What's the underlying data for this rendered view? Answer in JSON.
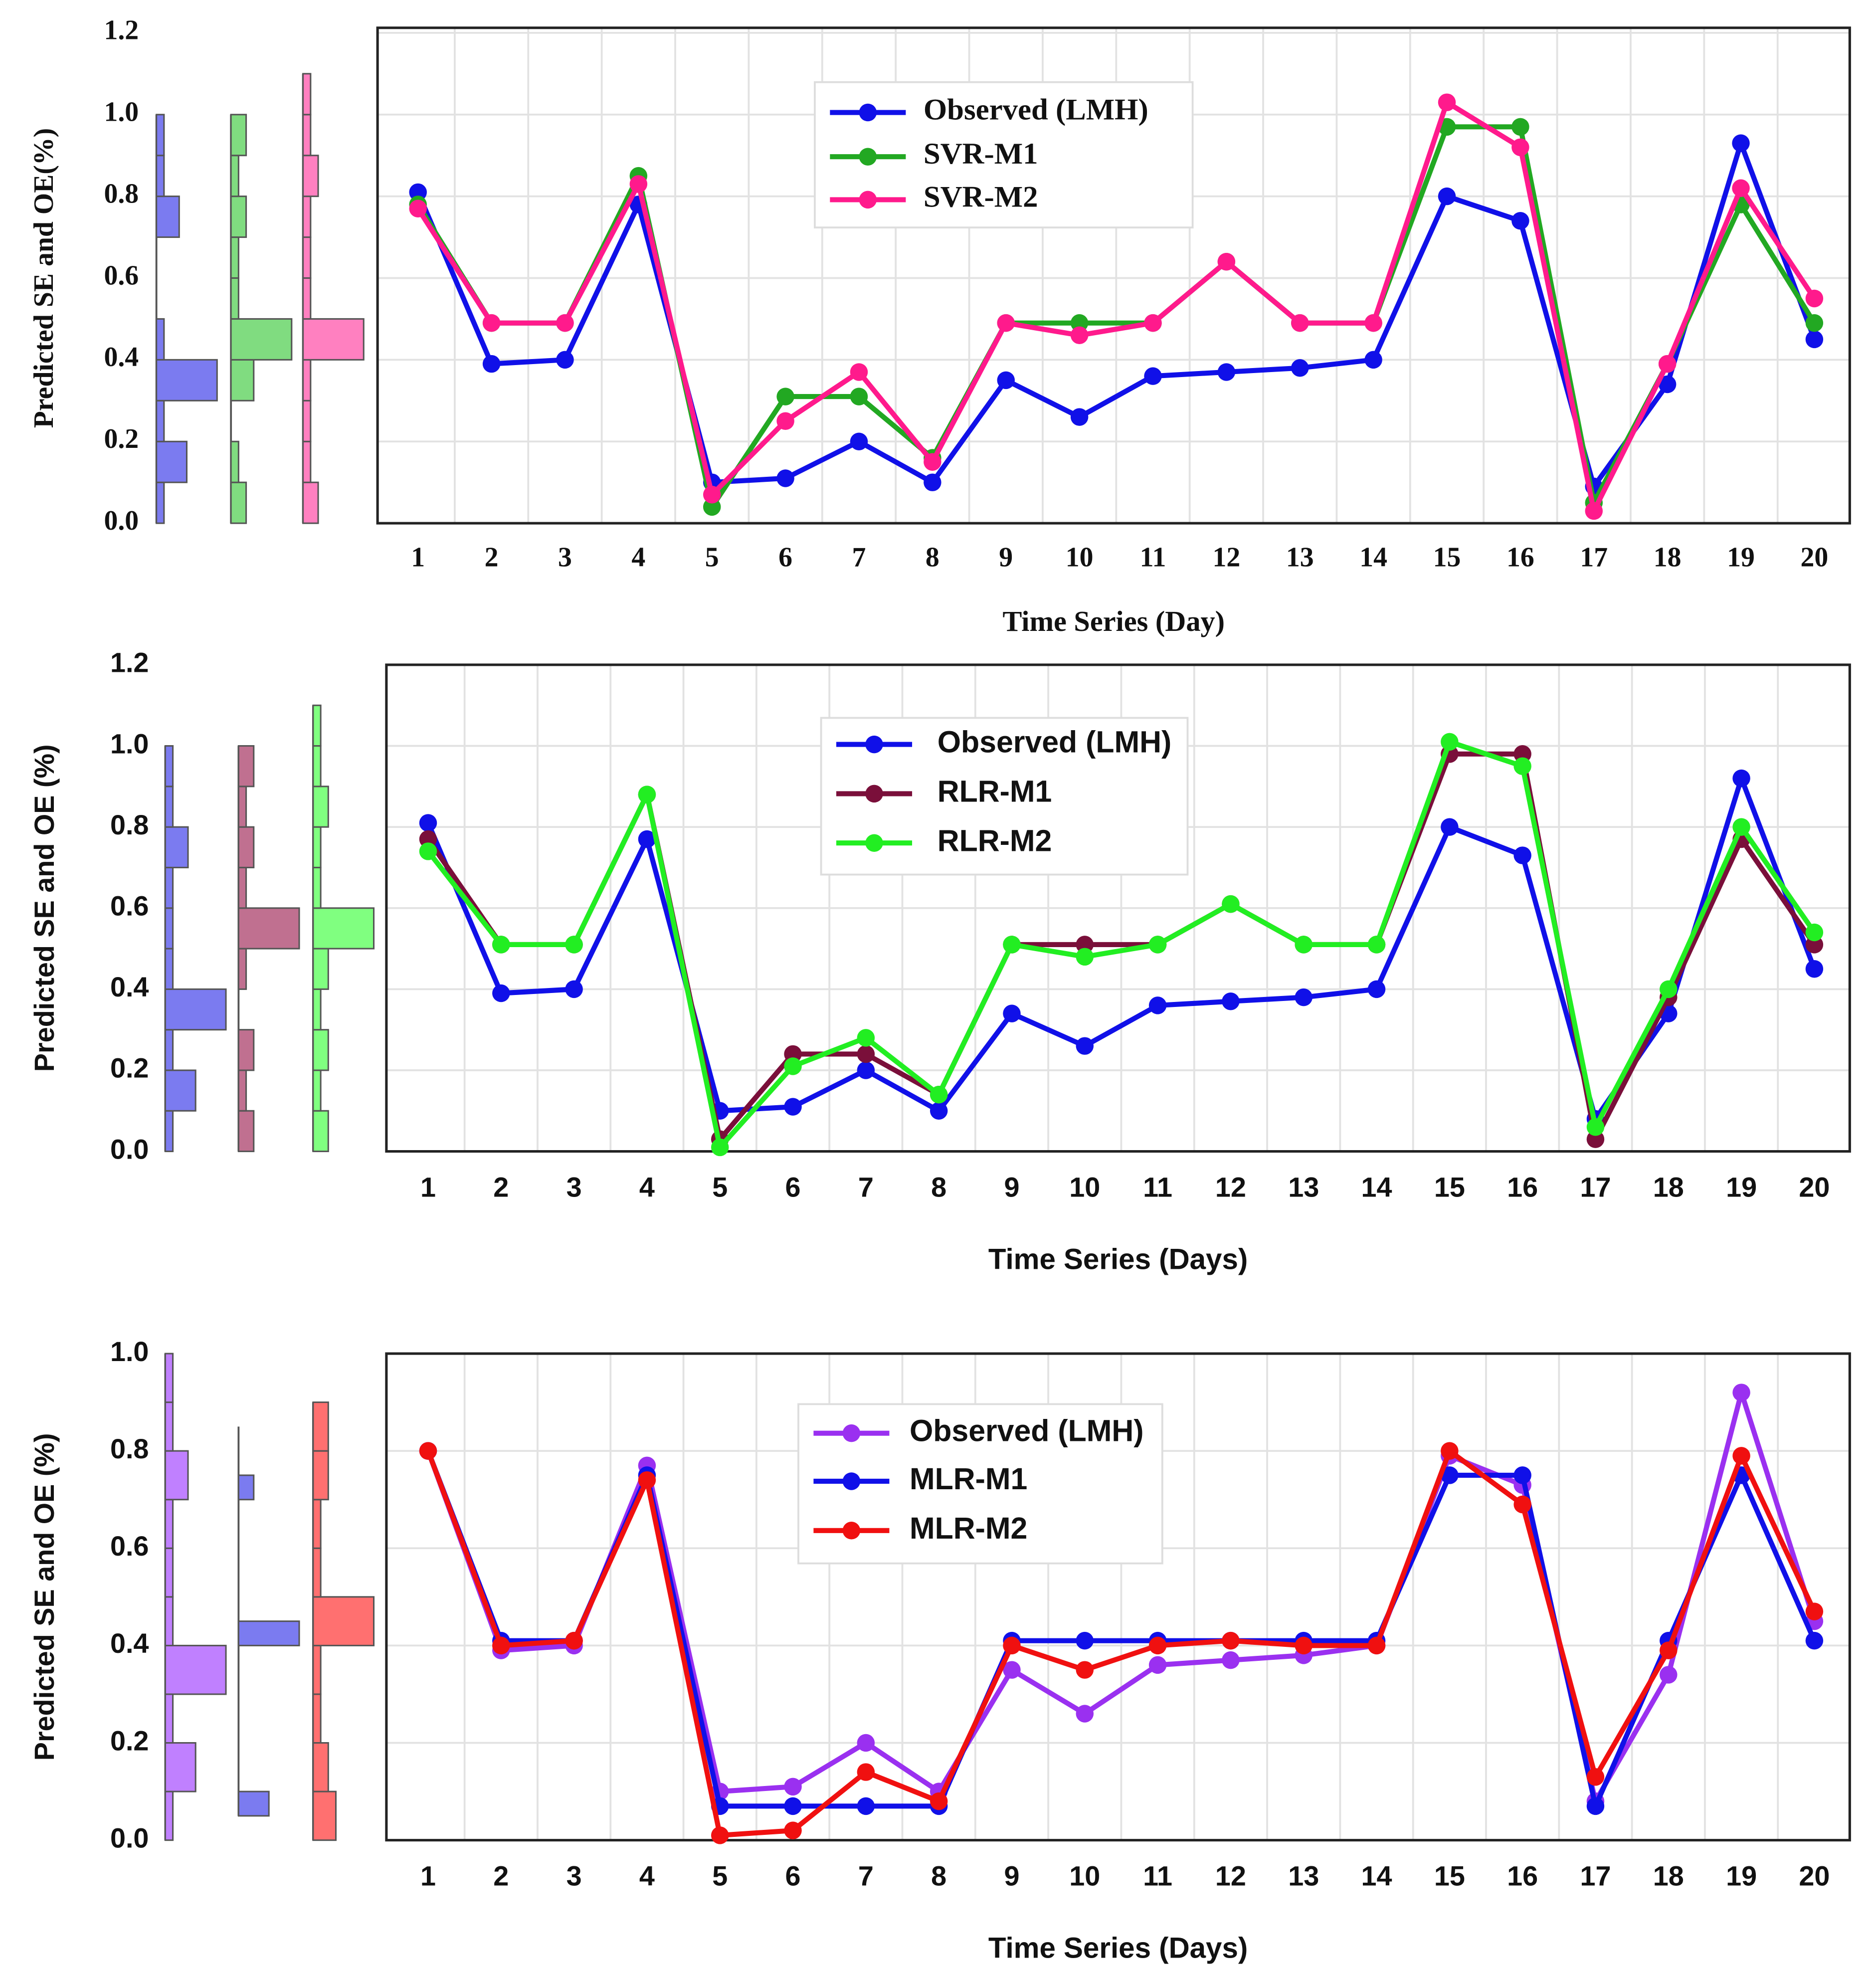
{
  "chart_data": [
    {
      "type": "line",
      "x_label": "Time Series (Day)",
      "y_label": "Predicted SE and OE(%)",
      "categories": [
        "1",
        "2",
        "3",
        "4",
        "5",
        "6",
        "7",
        "8",
        "9",
        "10",
        "11",
        "12",
        "13",
        "14",
        "15",
        "16",
        "17",
        "18",
        "19",
        "20"
      ],
      "ylim": [
        0,
        1.2
      ],
      "yticks": [
        {
          "value": 0,
          "label": "0.0"
        },
        0.2,
        0.4,
        0.6,
        0.8,
        {
          "value": 1,
          "label": "1.0"
        },
        1.2
      ],
      "grid": true,
      "series": [
        {
          "name": "Observed (LMH)",
          "color": "#1010e8",
          "values": [
            0.81,
            0.39,
            0.4,
            0.78,
            0.1,
            0.11,
            0.2,
            0.1,
            0.35,
            0.26,
            0.36,
            0.37,
            0.38,
            0.4,
            0.8,
            0.74,
            0.09,
            0.34,
            0.93,
            0.45
          ]
        },
        {
          "name": "SVR-M1",
          "color": "#22a822",
          "values": [
            0.78,
            0.49,
            0.49,
            0.85,
            0.04,
            0.31,
            0.31,
            0.16,
            0.49,
            0.49,
            0.49,
            0.64,
            0.49,
            0.49,
            0.97,
            0.97,
            0.05,
            0.39,
            0.78,
            0.49
          ]
        },
        {
          "name": "SVR-M2",
          "color": "#ff1a8c",
          "values": [
            0.77,
            0.49,
            0.49,
            0.83,
            0.07,
            0.25,
            0.37,
            0.15,
            0.49,
            0.46,
            0.49,
            0.64,
            0.49,
            0.49,
            1.03,
            0.92,
            0.03,
            0.39,
            0.82,
            0.55
          ]
        }
      ],
      "histograms": [
        {
          "color": "#7b7bf0",
          "bins": [
            0,
            0.1,
            0.2,
            0.3,
            0.4,
            0.5,
            0.6,
            0.7,
            0.8,
            0.9,
            1.0
          ],
          "counts": [
            1,
            4,
            1,
            8,
            1,
            0,
            0,
            3,
            1,
            1
          ]
        },
        {
          "color": "#80dc80",
          "bins": [
            0,
            0.1,
            0.2,
            0.3,
            0.4,
            0.5,
            0.6,
            0.7,
            0.8,
            0.9,
            1.0
          ],
          "counts": [
            2,
            1,
            0,
            3,
            8,
            1,
            1,
            2,
            1,
            2
          ]
        },
        {
          "color": "#ff80c0",
          "bins": [
            0,
            0.1,
            0.2,
            0.3,
            0.4,
            0.5,
            0.6,
            0.7,
            0.8,
            0.9,
            1.0,
            1.1
          ],
          "counts": [
            2,
            1,
            1,
            1,
            8,
            1,
            1,
            1,
            2,
            1,
            1
          ]
        }
      ]
    },
    {
      "type": "line",
      "x_label": "Time Series (Days)",
      "y_label": "Predicted SE and OE (%)",
      "categories": [
        "1",
        "2",
        "3",
        "4",
        "5",
        "6",
        "7",
        "8",
        "9",
        "10",
        "11",
        "12",
        "13",
        "14",
        "15",
        "16",
        "17",
        "18",
        "19",
        "20"
      ],
      "ylim": [
        0,
        1.2
      ],
      "yticks": [
        {
          "value": 0,
          "label": "0.0"
        },
        0.2,
        0.4,
        0.6,
        0.8,
        {
          "value": 1,
          "label": "1.0"
        },
        1.2
      ],
      "grid": true,
      "series": [
        {
          "name": "Observed (LMH)",
          "color": "#1010e8",
          "values": [
            0.81,
            0.39,
            0.4,
            0.77,
            0.1,
            0.11,
            0.2,
            0.1,
            0.34,
            0.26,
            0.36,
            0.37,
            0.38,
            0.4,
            0.8,
            0.73,
            0.08,
            0.34,
            0.92,
            0.45
          ]
        },
        {
          "name": "RLR-M1",
          "color": "#7a0f3a",
          "values": [
            0.77,
            0.51,
            0.51,
            0.88,
            0.03,
            0.24,
            0.24,
            0.14,
            0.51,
            0.51,
            0.51,
            0.61,
            0.51,
            0.51,
            0.98,
            0.98,
            0.03,
            0.38,
            0.77,
            0.51
          ]
        },
        {
          "name": "RLR-M2",
          "color": "#22ee22",
          "values": [
            0.74,
            0.51,
            0.51,
            0.88,
            0.01,
            0.21,
            0.28,
            0.14,
            0.51,
            0.48,
            0.51,
            0.61,
            0.51,
            0.51,
            1.01,
            0.95,
            0.06,
            0.4,
            0.8,
            0.54
          ]
        }
      ],
      "histograms": [
        {
          "color": "#7b7bf0",
          "bins": [
            0,
            0.1,
            0.2,
            0.3,
            0.4,
            0.5,
            0.6,
            0.7,
            0.8,
            0.9,
            1.0
          ],
          "counts": [
            1,
            4,
            1,
            8,
            1,
            1,
            1,
            3,
            1,
            1
          ]
        },
        {
          "color": "#c07090",
          "bins": [
            0,
            0.1,
            0.2,
            0.3,
            0.4,
            0.5,
            0.6,
            0.7,
            0.8,
            0.9,
            1.0
          ],
          "counts": [
            2,
            1,
            2,
            0,
            1,
            8,
            1,
            2,
            1,
            2
          ]
        },
        {
          "color": "#80ff80",
          "bins": [
            0,
            0.1,
            0.2,
            0.3,
            0.4,
            0.5,
            0.6,
            0.7,
            0.8,
            0.9,
            1.0,
            1.1
          ],
          "counts": [
            2,
            1,
            2,
            1,
            2,
            8,
            1,
            1,
            2,
            1,
            1
          ]
        }
      ]
    },
    {
      "type": "line",
      "x_label": "Time Series (Days)",
      "y_label": "Predicted SE and OE (%)",
      "categories": [
        "1",
        "2",
        "3",
        "4",
        "5",
        "6",
        "7",
        "8",
        "9",
        "10",
        "11",
        "12",
        "13",
        "14",
        "15",
        "16",
        "17",
        "18",
        "19",
        "20"
      ],
      "ylim": [
        0,
        1.0
      ],
      "yticks": [
        {
          "value": 0,
          "label": "0.0"
        },
        0.2,
        0.4,
        0.6,
        0.8,
        {
          "value": 1,
          "label": "1.0"
        }
      ],
      "grid": true,
      "series": [
        {
          "name": "Observed (LMH)",
          "color": "#9a30f0",
          "values": [
            0.8,
            0.39,
            0.4,
            0.77,
            0.1,
            0.11,
            0.2,
            0.1,
            0.35,
            0.26,
            0.36,
            0.37,
            0.38,
            0.4,
            0.79,
            0.73,
            0.08,
            0.34,
            0.92,
            0.45
          ]
        },
        {
          "name": "MLR-M1",
          "color": "#1010e8",
          "values": [
            0.8,
            0.41,
            0.41,
            0.75,
            0.07,
            0.07,
            0.07,
            0.07,
            0.41,
            0.41,
            0.41,
            0.41,
            0.41,
            0.41,
            0.75,
            0.75,
            0.07,
            0.41,
            0.75,
            0.41
          ]
        },
        {
          "name": "MLR-M2",
          "color": "#f01010",
          "values": [
            0.8,
            0.4,
            0.41,
            0.74,
            0.01,
            0.02,
            0.14,
            0.08,
            0.4,
            0.35,
            0.4,
            0.41,
            0.4,
            0.4,
            0.8,
            0.69,
            0.13,
            0.39,
            0.79,
            0.47
          ]
        }
      ],
      "histograms": [
        {
          "color": "#c080ff",
          "bins": [
            0,
            0.1,
            0.2,
            0.3,
            0.4,
            0.5,
            0.6,
            0.7,
            0.8,
            0.9,
            1.0
          ],
          "counts": [
            1,
            4,
            1,
            8,
            1,
            1,
            1,
            3,
            1,
            1
          ]
        },
        {
          "color": "#7b7bf0",
          "bins": [
            0.05,
            0.1,
            0.15,
            0.2,
            0.25,
            0.3,
            0.35,
            0.4,
            0.45,
            0.5,
            0.55,
            0.6,
            0.65,
            0.7,
            0.75,
            0.8,
            0.85
          ],
          "counts": [
            4,
            0,
            0,
            0,
            0,
            0,
            0,
            8,
            0,
            0,
            0,
            0,
            0,
            2,
            0,
            0
          ]
        },
        {
          "color": "#ff7070",
          "bins": [
            0,
            0.1,
            0.2,
            0.3,
            0.4,
            0.5,
            0.6,
            0.7,
            0.8,
            0.9
          ],
          "counts": [
            3,
            2,
            1,
            1,
            8,
            1,
            1,
            2,
            2
          ]
        }
      ]
    }
  ]
}
